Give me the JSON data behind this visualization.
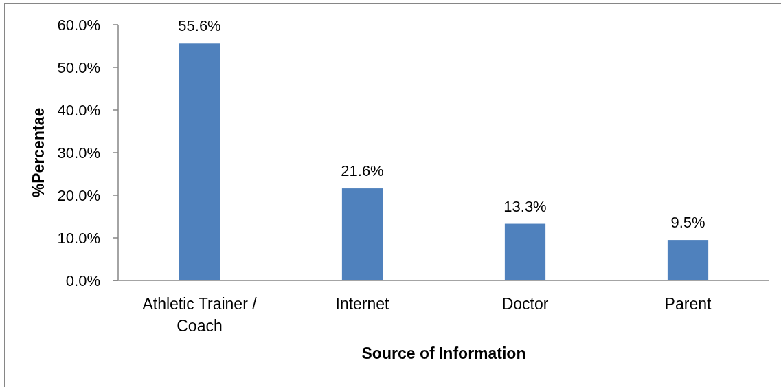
{
  "chart_data": {
    "type": "bar",
    "xlabel": "Source of Information",
    "ylabel": "%Percentae",
    "categories": [
      "Athletic Trainer / Coach",
      "Internet",
      "Doctor",
      "Parent"
    ],
    "values": [
      55.6,
      21.6,
      13.3,
      9.5
    ],
    "color": "#4f81bd",
    "value_labels": [
      "55.6%",
      "21.6%",
      "13.3%",
      "9.5%"
    ],
    "ylim": [
      0,
      60
    ],
    "yticks": [
      {
        "value": 0,
        "label": "0.0%"
      },
      {
        "value": 10,
        "label": "10.0%"
      },
      {
        "value": 20,
        "label": "20.0%"
      },
      {
        "value": 30,
        "label": "30.0%"
      },
      {
        "value": 40,
        "label": "40.0%"
      },
      {
        "value": 50,
        "label": "50.0%"
      },
      {
        "value": 60,
        "label": "60.0%"
      }
    ]
  }
}
